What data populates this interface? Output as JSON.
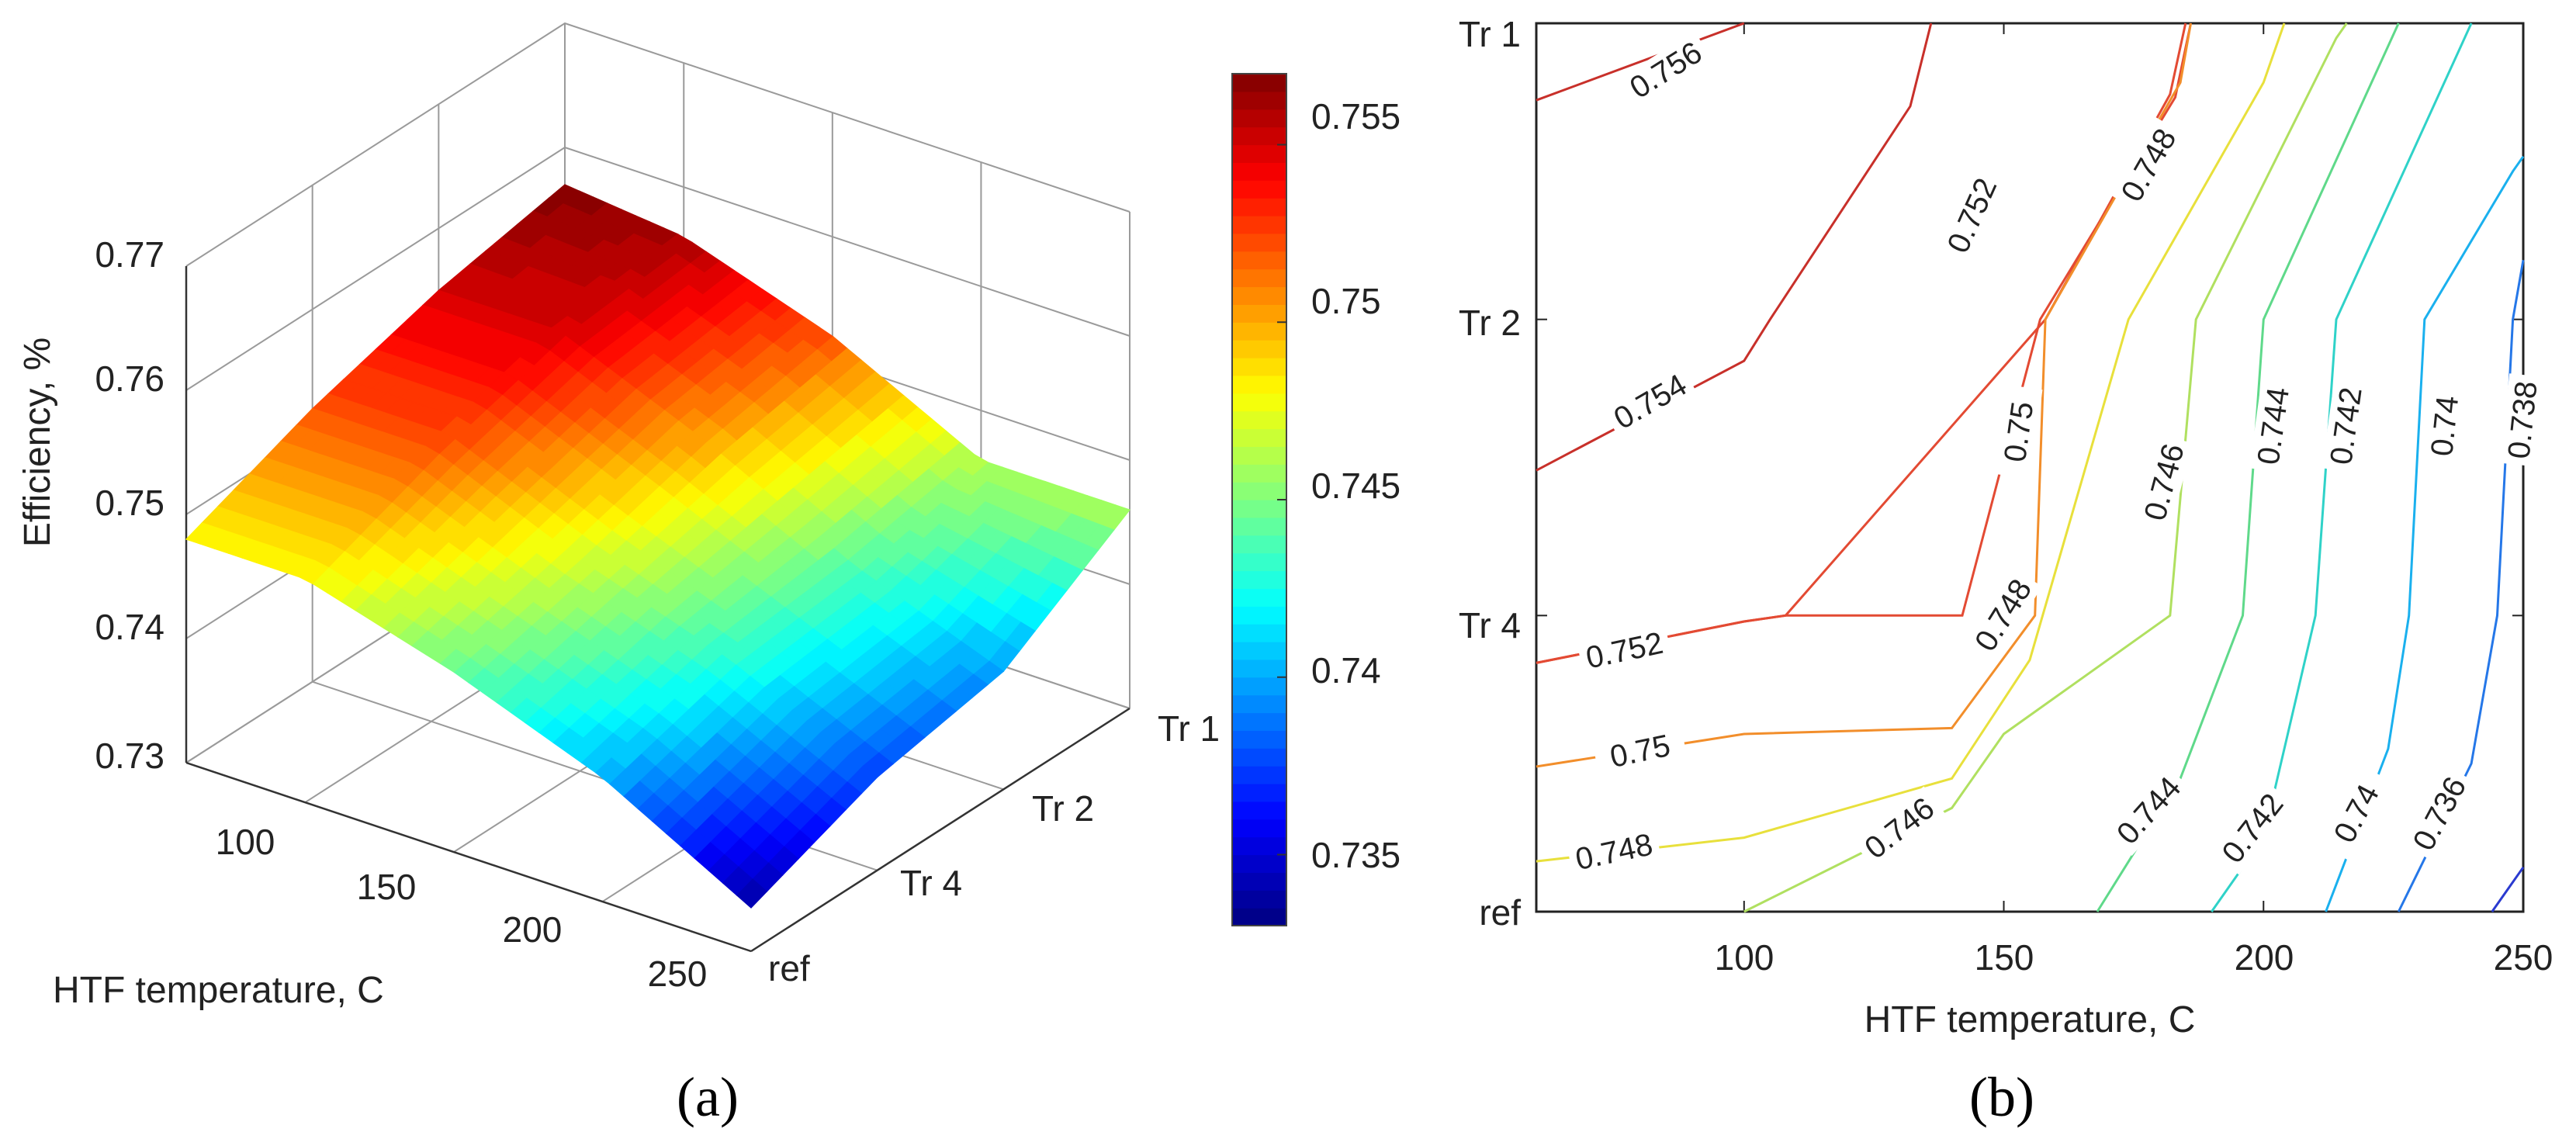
{
  "chart_data": [
    {
      "panel_label": "(a)",
      "type": "surface3d",
      "title": "",
      "xlabel": "HTF temperature, C",
      "ylabel": "",
      "zlabel": "Efficiency, %",
      "x_ticks": [
        "100",
        "150",
        "200",
        "250"
      ],
      "y_ticks": [
        "ref",
        "Tr 4",
        "Tr 2",
        "Tr 1"
      ],
      "z_ticks": [
        "0.73",
        "0.74",
        "0.75",
        "0.76",
        "0.77"
      ],
      "zlim": [
        0.73,
        0.77
      ],
      "x": [
        60,
        100,
        150,
        200,
        250
      ],
      "y": [
        "ref",
        "Tr 4",
        "Tr 2",
        "Tr 1"
      ],
      "z_grid": [
        [
          0.748,
          0.748,
          0.7445,
          0.74,
          0.7335
        ],
        [
          0.752,
          0.752,
          0.747,
          0.743,
          0.7375
        ],
        [
          0.755,
          0.755,
          0.75,
          0.744,
          0.7395
        ],
        [
          0.757,
          0.756,
          0.752,
          0.746,
          0.746
        ]
      ],
      "colorbar": {
        "range": [
          0.733,
          0.757
        ],
        "ticks": [
          "0.735",
          "0.74",
          "0.745",
          "0.75",
          "0.755"
        ],
        "colormap": "jet"
      }
    },
    {
      "panel_label": "(b)",
      "type": "contour",
      "title": "",
      "xlabel": "HTF temperature, C",
      "ylabel": "",
      "x_ticks": [
        "100",
        "150",
        "200",
        "250"
      ],
      "y_ticks": [
        "ref",
        "Tr 4",
        "Tr 2",
        "Tr 1"
      ],
      "xlim": [
        60,
        250
      ],
      "levels": [
        {
          "value": 0.756,
          "label": "0.756",
          "color": "#c8302a"
        },
        {
          "value": 0.754,
          "label": "0.754",
          "color": "#c8302a"
        },
        {
          "value": 0.752,
          "label": "0.752",
          "color": "#e34a33"
        },
        {
          "value": 0.75,
          "label": "0.75",
          "color": "#f28e2b"
        },
        {
          "value": 0.748,
          "label": "0.748",
          "color": "#e8e03c"
        },
        {
          "value": 0.746,
          "label": "0.746",
          "color": "#b0e060"
        },
        {
          "value": 0.744,
          "label": "0.744",
          "color": "#5fd98a"
        },
        {
          "value": 0.742,
          "label": "0.742",
          "color": "#2fd2c8"
        },
        {
          "value": 0.74,
          "label": "0.74",
          "color": "#1ab0ee"
        },
        {
          "value": 0.738,
          "label": "0.738",
          "color": "#2577e8"
        },
        {
          "value": 0.736,
          "label": "0.736",
          "color": "#2a3ad0"
        }
      ],
      "contour_lines": [
        {
          "level": "0.756",
          "points": [
            [
              60,
              2.74
            ],
            [
              100,
              3.0
            ]
          ]
        },
        {
          "level": "0.754",
          "points": [
            [
              60,
              1.49
            ],
            [
              100,
              1.86
            ],
            [
              105,
              2.0
            ],
            [
              132,
              2.72
            ],
            [
              136,
              3.0
            ]
          ]
        },
        {
          "level": "0.752",
          "points": [
            [
              60,
              0.84
            ],
            [
              100,
              0.98
            ],
            [
              108,
              1.0
            ],
            [
              142,
              1.0
            ],
            [
              157,
              2.0
            ],
            [
              183,
              2.75
            ],
            [
              186,
              3.0
            ]
          ]
        },
        {
          "level": "0.752",
          "points": [
            [
              60,
              0.84
            ],
            [
              100,
              0.98
            ],
            [
              108,
              1.0
            ],
            [
              158,
              2.0
            ],
            [
              182,
              2.76
            ],
            [
              185,
              3.0
            ]
          ]
        },
        {
          "level": "0.75",
          "points": [
            [
              60,
              0.49
            ],
            [
              100,
              0.6
            ],
            [
              140,
              0.62
            ],
            [
              156,
              1.0
            ],
            [
              158,
              2.0
            ],
            [
              184,
              2.8
            ],
            [
              186,
              3.0
            ]
          ]
        },
        {
          "level": "0.748",
          "points": [
            [
              60,
              0.17
            ],
            [
              100,
              0.25
            ],
            [
              140,
              0.45
            ],
            [
              155,
              0.85
            ],
            [
              174,
              2.0
            ],
            [
              200,
              2.8
            ],
            [
              204,
              3.0
            ]
          ]
        },
        {
          "level": "0.746",
          "points": [
            [
              100,
              0.0
            ],
            [
              140,
              0.35
            ],
            [
              150,
              0.6
            ],
            [
              182,
              1.0
            ],
            [
              187,
              2.0
            ],
            [
              214,
              2.95
            ],
            [
              216,
              3.0
            ]
          ]
        },
        {
          "level": "0.744",
          "points": [
            [
              168,
              0.0
            ],
            [
              184,
              0.45
            ],
            [
              196,
              1.0
            ],
            [
              200,
              2.0
            ],
            [
              226,
              3.0
            ]
          ]
        },
        {
          "level": "0.742",
          "points": [
            [
              190,
              0.0
            ],
            [
              200,
              0.25
            ],
            [
              210,
              1.0
            ],
            [
              214,
              2.0
            ],
            [
              240,
              3.0
            ]
          ]
        },
        {
          "level": "0.74",
          "points": [
            [
              212,
              0.0
            ],
            [
              224,
              0.55
            ],
            [
              228,
              1.0
            ],
            [
              231,
              2.0
            ],
            [
              248,
              2.5
            ],
            [
              250,
              2.55
            ]
          ]
        },
        {
          "level": "0.738",
          "points": [
            [
              226,
              0.0
            ],
            [
              240,
              0.5
            ],
            [
              245,
              1.0
            ],
            [
              248,
              2.0
            ],
            [
              250,
              2.2
            ]
          ]
        },
        {
          "level": "0.736",
          "points": [
            [
              244,
              0.0
            ],
            [
              250,
              0.15
            ]
          ]
        }
      ]
    }
  ]
}
